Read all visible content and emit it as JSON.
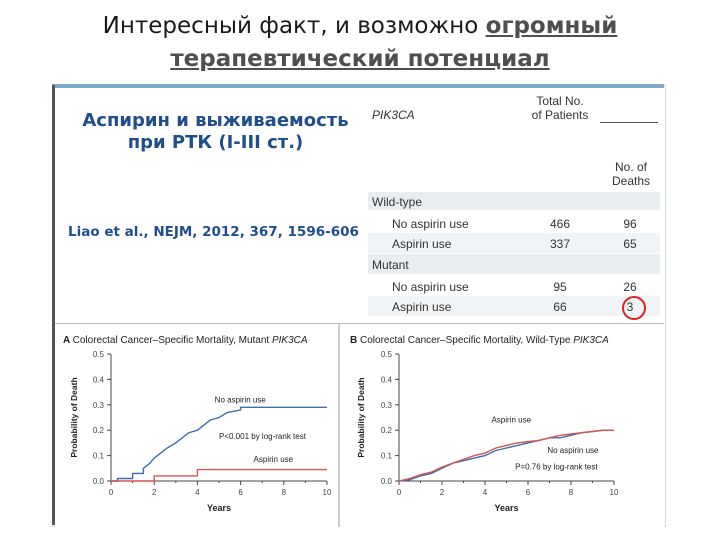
{
  "slide": {
    "title_line1_plain": "Интересный факт, и возможно",
    "title_line1_hl": "огромный",
    "title_line2_hl": "терапевтический потенциал"
  },
  "panel": {
    "title_line1": "Аспирин и выживаемость",
    "title_line2": "при РТК (I-III ст.)",
    "citation": "Liao et al., NEJM, 2012, 367, 1596-606"
  },
  "table": {
    "col1_header": "PIK3CA",
    "col2_header_line1": "Total No.",
    "col2_header_line2": "of Patients",
    "col3_header_line1": "No. of",
    "col3_header_line2": "Deaths",
    "groups": [
      {
        "label": "Wild-type",
        "rows": [
          {
            "label": "No aspirin use",
            "patients": "466",
            "deaths": "96"
          },
          {
            "label": "Aspirin use",
            "patients": "337",
            "deaths": "65"
          }
        ]
      },
      {
        "label": "Mutant",
        "rows": [
          {
            "label": "No aspirin use",
            "patients": "95",
            "deaths": "26"
          },
          {
            "label": "Aspirin use",
            "patients": "66",
            "deaths": "3"
          }
        ]
      }
    ]
  },
  "chart_data": [
    {
      "type": "line",
      "panel_letter": "A",
      "title_plain": "Colorectal Cancer–Specific Mortality, Mutant ",
      "title_italic": "PIK3CA",
      "xlabel": "Years",
      "ylabel": "Probability of Death",
      "xlim": [
        0,
        10
      ],
      "ylim": [
        0,
        0.5
      ],
      "xticks": [
        "0",
        "2",
        "4",
        "6",
        "8",
        "10"
      ],
      "yticks": [
        "0.0",
        "0.1",
        "0.2",
        "0.3",
        "0.4",
        "0.5"
      ],
      "annotation": "P<0.001 by log-rank test",
      "series": [
        {
          "name": "No aspirin use",
          "color": "#3a6fb0",
          "points": [
            [
              0,
              0
            ],
            [
              0.3,
              0
            ],
            [
              0.3,
              0.01
            ],
            [
              1,
              0.01
            ],
            [
              1,
              0.03
            ],
            [
              1.5,
              0.03
            ],
            [
              1.5,
              0.05
            ],
            [
              1.8,
              0.07
            ],
            [
              2,
              0.09
            ],
            [
              2.3,
              0.11
            ],
            [
              2.6,
              0.13
            ],
            [
              3,
              0.15
            ],
            [
              3.3,
              0.17
            ],
            [
              3.6,
              0.19
            ],
            [
              4,
              0.2
            ],
            [
              4.3,
              0.22
            ],
            [
              4.6,
              0.24
            ],
            [
              5,
              0.25
            ],
            [
              5.4,
              0.27
            ],
            [
              6,
              0.28
            ],
            [
              6,
              0.29
            ],
            [
              8,
              0.29
            ],
            [
              9,
              0.29
            ],
            [
              10,
              0.29
            ]
          ]
        },
        {
          "name": "Aspirin use",
          "color": "#d9534f",
          "points": [
            [
              0,
              0
            ],
            [
              2,
              0
            ],
            [
              2,
              0.02
            ],
            [
              4,
              0.02
            ],
            [
              4,
              0.045
            ],
            [
              10,
              0.045
            ]
          ]
        }
      ],
      "labels": {
        "no_aspirin": "No aspirin use",
        "aspirin": "Aspirin use"
      }
    },
    {
      "type": "line",
      "panel_letter": "B",
      "title_plain": "Colorectal Cancer–Specific Mortality, Wild-Type ",
      "title_italic": "PIK3CA",
      "xlabel": "Years",
      "ylabel": "Probability of Death",
      "xlim": [
        0,
        10
      ],
      "ylim": [
        0,
        0.5
      ],
      "xticks": [
        "0",
        "2",
        "4",
        "6",
        "8",
        "10"
      ],
      "yticks": [
        "0.0",
        "0.1",
        "0.2",
        "0.3",
        "0.4",
        "0.5"
      ],
      "annotation": "P=0.76 by log-rank test",
      "series": [
        {
          "name": "No aspirin use",
          "color": "#3a6fb0",
          "points": [
            [
              0,
              0
            ],
            [
              0.5,
              0.005
            ],
            [
              1,
              0.02
            ],
            [
              1.5,
              0.03
            ],
            [
              2,
              0.05
            ],
            [
              2.5,
              0.07
            ],
            [
              3,
              0.08
            ],
            [
              3.5,
              0.09
            ],
            [
              4,
              0.1
            ],
            [
              4.5,
              0.12
            ],
            [
              5,
              0.13
            ],
            [
              5.5,
              0.14
            ],
            [
              6,
              0.15
            ],
            [
              6.5,
              0.16
            ],
            [
              7,
              0.17
            ],
            [
              7.5,
              0.17
            ],
            [
              8,
              0.18
            ],
            [
              8.5,
              0.19
            ],
            [
              9,
              0.195
            ],
            [
              9.5,
              0.2
            ],
            [
              10,
              0.2
            ]
          ]
        },
        {
          "name": "Aspirin use",
          "color": "#d9534f",
          "points": [
            [
              0,
              0
            ],
            [
              0.5,
              0.01
            ],
            [
              1,
              0.025
            ],
            [
              1.5,
              0.035
            ],
            [
              2,
              0.055
            ],
            [
              2.5,
              0.07
            ],
            [
              3,
              0.085
            ],
            [
              3.5,
              0.1
            ],
            [
              4,
              0.11
            ],
            [
              4.5,
              0.13
            ],
            [
              5,
              0.14
            ],
            [
              5.5,
              0.15
            ],
            [
              6,
              0.155
            ],
            [
              6.5,
              0.16
            ],
            [
              7,
              0.17
            ],
            [
              7.5,
              0.18
            ],
            [
              8,
              0.185
            ],
            [
              8.5,
              0.19
            ],
            [
              9,
              0.195
            ],
            [
              9.5,
              0.2
            ],
            [
              10,
              0.2
            ]
          ]
        }
      ],
      "labels": {
        "no_aspirin": "No aspirin use",
        "aspirin": "Aspirin use"
      }
    }
  ]
}
